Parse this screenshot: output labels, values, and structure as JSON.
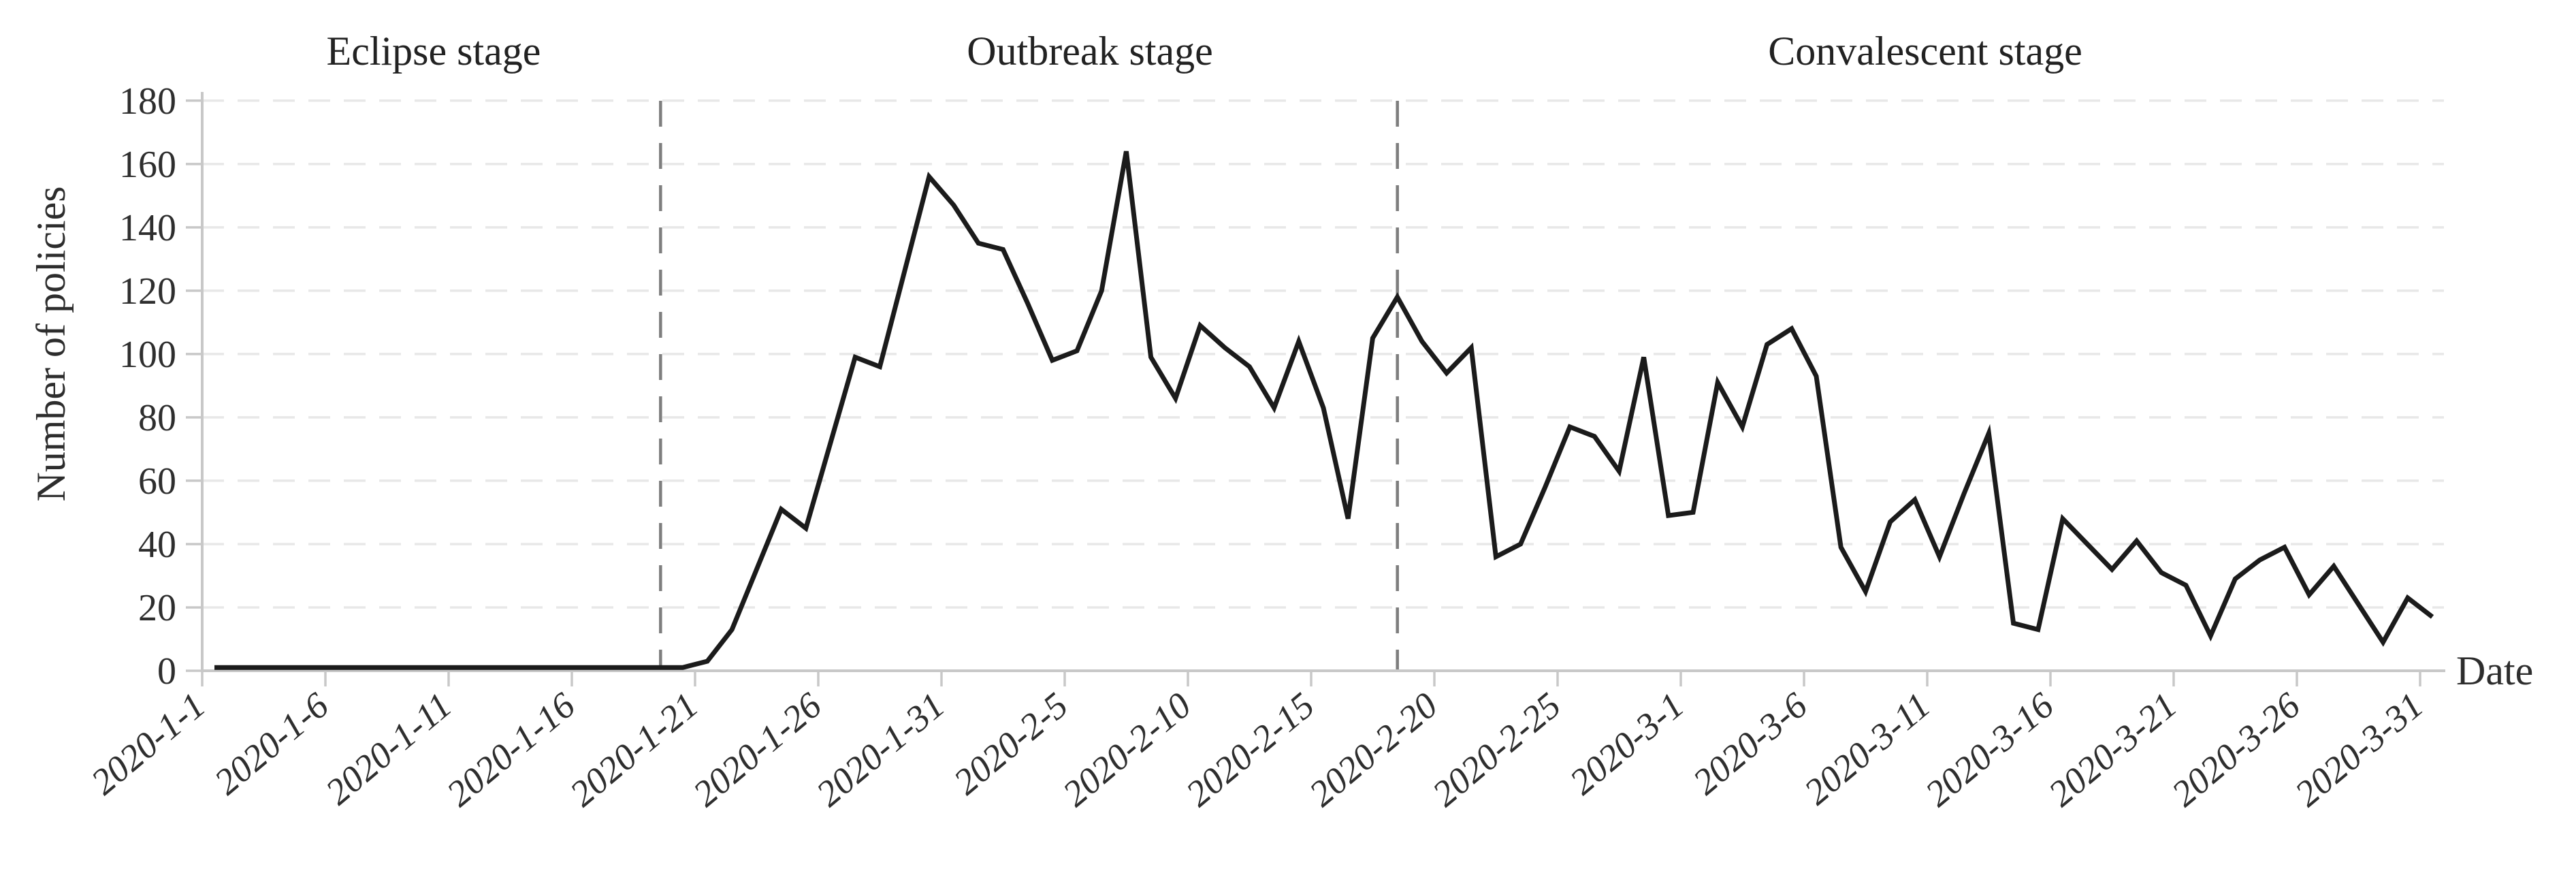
{
  "page": {
    "background": "#ffffff"
  },
  "chart_data": {
    "type": "line",
    "title": "",
    "ylabel": "Number of policies",
    "xlabel": "Date",
    "ylim": [
      0,
      180
    ],
    "ytick_step": 20,
    "y_tick_labels": [
      "0",
      "20",
      "40",
      "60",
      "80",
      "100",
      "120",
      "140",
      "160",
      "180"
    ],
    "x_tick_labels": [
      "2020-1-1",
      "2020-1-6",
      "2020-1-11",
      "2020-1-16",
      "2020-1-21",
      "2020-1-26",
      "2020-1-31",
      "2020-2-5",
      "2020-2-10",
      "2020-2-15",
      "2020-2-20",
      "2020-2-25",
      "2020-3-1",
      "2020-3-6",
      "2020-3-11",
      "2020-3-16",
      "2020-3-21",
      "2020-3-26",
      "2020-3-31"
    ],
    "x_tick_every_days": 5,
    "grid": "horizontal-dashed",
    "legend": "none",
    "stages": [
      {
        "label": "Eclipse stage",
        "from": "2020-1-1",
        "to": "2020-1-19"
      },
      {
        "label": "Outbreak stage",
        "from": "2020-1-20",
        "to": "2020-2-17"
      },
      {
        "label": "Convalescent stage",
        "from": "2020-2-18",
        "to": "2020-3-31"
      }
    ],
    "divider_positions_band_units": [
      18.6,
      48.5
    ],
    "categories": [
      "2020-1-1",
      "2020-1-2",
      "2020-1-3",
      "2020-1-4",
      "2020-1-5",
      "2020-1-6",
      "2020-1-7",
      "2020-1-8",
      "2020-1-9",
      "2020-1-10",
      "2020-1-11",
      "2020-1-12",
      "2020-1-13",
      "2020-1-14",
      "2020-1-15",
      "2020-1-16",
      "2020-1-17",
      "2020-1-18",
      "2020-1-19",
      "2020-1-20",
      "2020-1-21",
      "2020-1-22",
      "2020-1-23",
      "2020-1-24",
      "2020-1-25",
      "2020-1-26",
      "2020-1-27",
      "2020-1-28",
      "2020-1-29",
      "2020-1-30",
      "2020-1-31",
      "2020-2-1",
      "2020-2-2",
      "2020-2-3",
      "2020-2-4",
      "2020-2-5",
      "2020-2-6",
      "2020-2-7",
      "2020-2-8",
      "2020-2-9",
      "2020-2-10",
      "2020-2-11",
      "2020-2-12",
      "2020-2-13",
      "2020-2-14",
      "2020-2-15",
      "2020-2-16",
      "2020-2-17",
      "2020-2-18",
      "2020-2-19",
      "2020-2-20",
      "2020-2-21",
      "2020-2-22",
      "2020-2-23",
      "2020-2-24",
      "2020-2-25",
      "2020-2-26",
      "2020-2-27",
      "2020-2-28",
      "2020-2-29",
      "2020-3-1",
      "2020-3-2",
      "2020-3-3",
      "2020-3-4",
      "2020-3-5",
      "2020-3-6",
      "2020-3-7",
      "2020-3-8",
      "2020-3-9",
      "2020-3-10",
      "2020-3-11",
      "2020-3-12",
      "2020-3-13",
      "2020-3-14",
      "2020-3-15",
      "2020-3-16",
      "2020-3-17",
      "2020-3-18",
      "2020-3-19",
      "2020-3-20",
      "2020-3-21",
      "2020-3-22",
      "2020-3-23",
      "2020-3-24",
      "2020-3-25",
      "2020-3-26",
      "2020-3-27",
      "2020-3-28",
      "2020-3-29",
      "2020-3-30",
      "2020-3-31"
    ],
    "values": [
      1,
      1,
      1,
      1,
      1,
      1,
      1,
      1,
      1,
      1,
      1,
      1,
      1,
      1,
      1,
      1,
      1,
      1,
      1,
      1,
      3,
      13,
      32,
      51,
      45,
      72,
      99,
      96,
      126,
      156,
      147,
      135,
      133,
      116,
      98,
      101,
      120,
      164,
      99,
      86,
      109,
      102,
      96,
      83,
      104,
      83,
      48,
      105,
      118,
      104,
      94,
      102,
      36,
      40,
      58,
      77,
      74,
      63,
      99,
      49,
      50,
      91,
      77,
      103,
      108,
      93,
      39,
      25,
      47,
      54,
      36,
      56,
      75,
      15,
      13,
      48,
      40,
      32,
      41,
      31,
      27,
      11,
      29,
      35,
      39,
      24,
      33,
      21,
      9,
      23,
      17
    ],
    "colors": {
      "line": "#1b1b1b",
      "grid": "#e8e8e8",
      "axis": "#c8c8c8",
      "divider": "#7e7e7e",
      "text": "#2d2d2d",
      "background": "#ffffff"
    }
  }
}
